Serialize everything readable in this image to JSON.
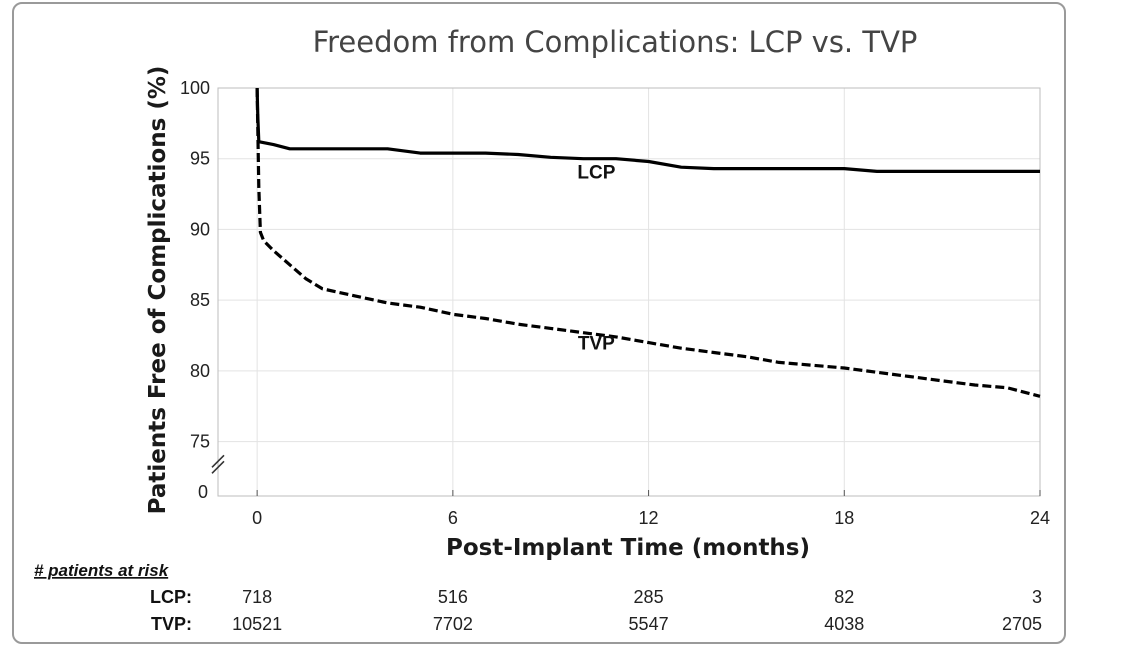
{
  "chart_data": {
    "type": "line",
    "title": "Freedom from Complications: LCP vs. TVP",
    "xlabel": "Post-Implant Time (months)",
    "ylabel": "Patients Free of Complications (%)",
    "xlim": [
      -1.2,
      24
    ],
    "ylim_display": [
      72,
      100
    ],
    "axis_break": true,
    "x_ticks": [
      0,
      6,
      12,
      18,
      24
    ],
    "y_ticks": [
      75,
      80,
      85,
      90,
      95,
      100
    ],
    "y_break_tick": "0",
    "grid": true,
    "series": [
      {
        "name": "LCP",
        "style": "solid",
        "x": [
          0,
          0.02,
          0.05,
          0.5,
          1,
          2,
          3,
          4,
          5,
          6,
          7,
          8,
          9,
          10,
          11,
          12,
          13,
          14,
          15,
          16,
          17,
          18,
          19,
          20,
          21,
          22,
          23,
          24
        ],
        "y": [
          100,
          98,
          96.2,
          96,
          95.7,
          95.7,
          95.7,
          95.7,
          95.4,
          95.4,
          95.4,
          95.3,
          95.1,
          95,
          95,
          94.8,
          94.4,
          94.3,
          94.3,
          94.3,
          94.3,
          94.3,
          94.1,
          94.1,
          94.1,
          94.1,
          94.1,
          94.1
        ]
      },
      {
        "name": "TVP",
        "style": "dashed",
        "x": [
          0,
          0.05,
          0.1,
          0.2,
          0.5,
          1,
          1.5,
          2,
          3,
          4,
          5,
          6,
          7,
          8,
          9,
          10,
          11,
          12,
          13,
          14,
          15,
          16,
          17,
          18,
          19,
          20,
          21,
          22,
          23,
          24
        ],
        "y": [
          100,
          93,
          89.8,
          89.2,
          88.5,
          87.5,
          86.5,
          85.8,
          85.3,
          84.8,
          84.5,
          84,
          83.7,
          83.3,
          83,
          82.7,
          82.4,
          82,
          81.6,
          81.3,
          81,
          80.6,
          80.4,
          80.2,
          79.9,
          79.6,
          79.3,
          79,
          78.8,
          78.2
        ]
      }
    ],
    "annotations": [
      {
        "text": "LCP",
        "x": 10.4,
        "y": 93.6
      },
      {
        "text": "TVP",
        "x": 10.4,
        "y": 81.5
      }
    ],
    "risk_table": {
      "heading": "# patients at risk",
      "rows": [
        {
          "label": "LCP:",
          "values": [
            "718",
            "516",
            "285",
            "82",
            "3"
          ]
        },
        {
          "label": "TVP:",
          "values": [
            "10521",
            "7702",
            "5547",
            "4038",
            "2705"
          ]
        }
      ]
    }
  }
}
